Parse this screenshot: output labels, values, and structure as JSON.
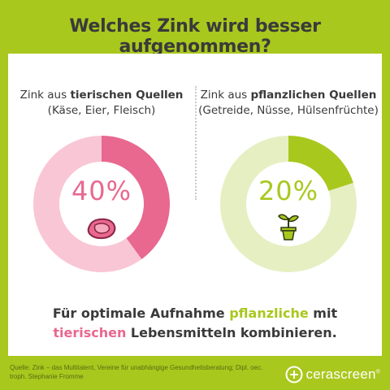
{
  "title": "Welches Zink wird besser aufgenommen?",
  "left": {
    "heading_prefix": "Zink aus ",
    "heading_bold": "tierischen Quellen",
    "subheading": "(Käse, Eier, Fleisch)",
    "percent_label": "40%",
    "icon": "steak-icon"
  },
  "right": {
    "heading_prefix": "Zink aus ",
    "heading_bold": "pflanzlichen Quellen",
    "subheading": "(Getreide, Nüsse, Hülsenfrüchte)",
    "percent_label": "20%",
    "icon": "plant-pot-icon"
  },
  "bottom": {
    "line1_a": "Für optimale Aufnahme ",
    "line1_plant": "pflanzliche",
    "line1_b": " mit",
    "line2_animal": "tierischen",
    "line2_b": " Lebensmitteln kombinieren."
  },
  "source": "Quelle: Zink – das Multitalent, Vereine für unabhängige Gesundheitsberatung; Dipl. oec. troph. Stephanie Fromme",
  "logo": {
    "text": "cerascreen",
    "mark": "®"
  },
  "colors": {
    "background": "#a8c81e",
    "animal_main": "#e8688f",
    "animal_rest": "#f9c6d5",
    "plant_main": "#a8c81e",
    "plant_rest": "#e6efc2",
    "text": "#3a3a3a"
  },
  "chart_data": [
    {
      "type": "pie",
      "labels": [
        "tierischen Quellen",
        ""
      ],
      "values": [
        40,
        60
      ]
    },
    {
      "type": "pie",
      "labels": [
        "pflanzlichen Quellen",
        ""
      ],
      "values": [
        20,
        80
      ]
    }
  ]
}
